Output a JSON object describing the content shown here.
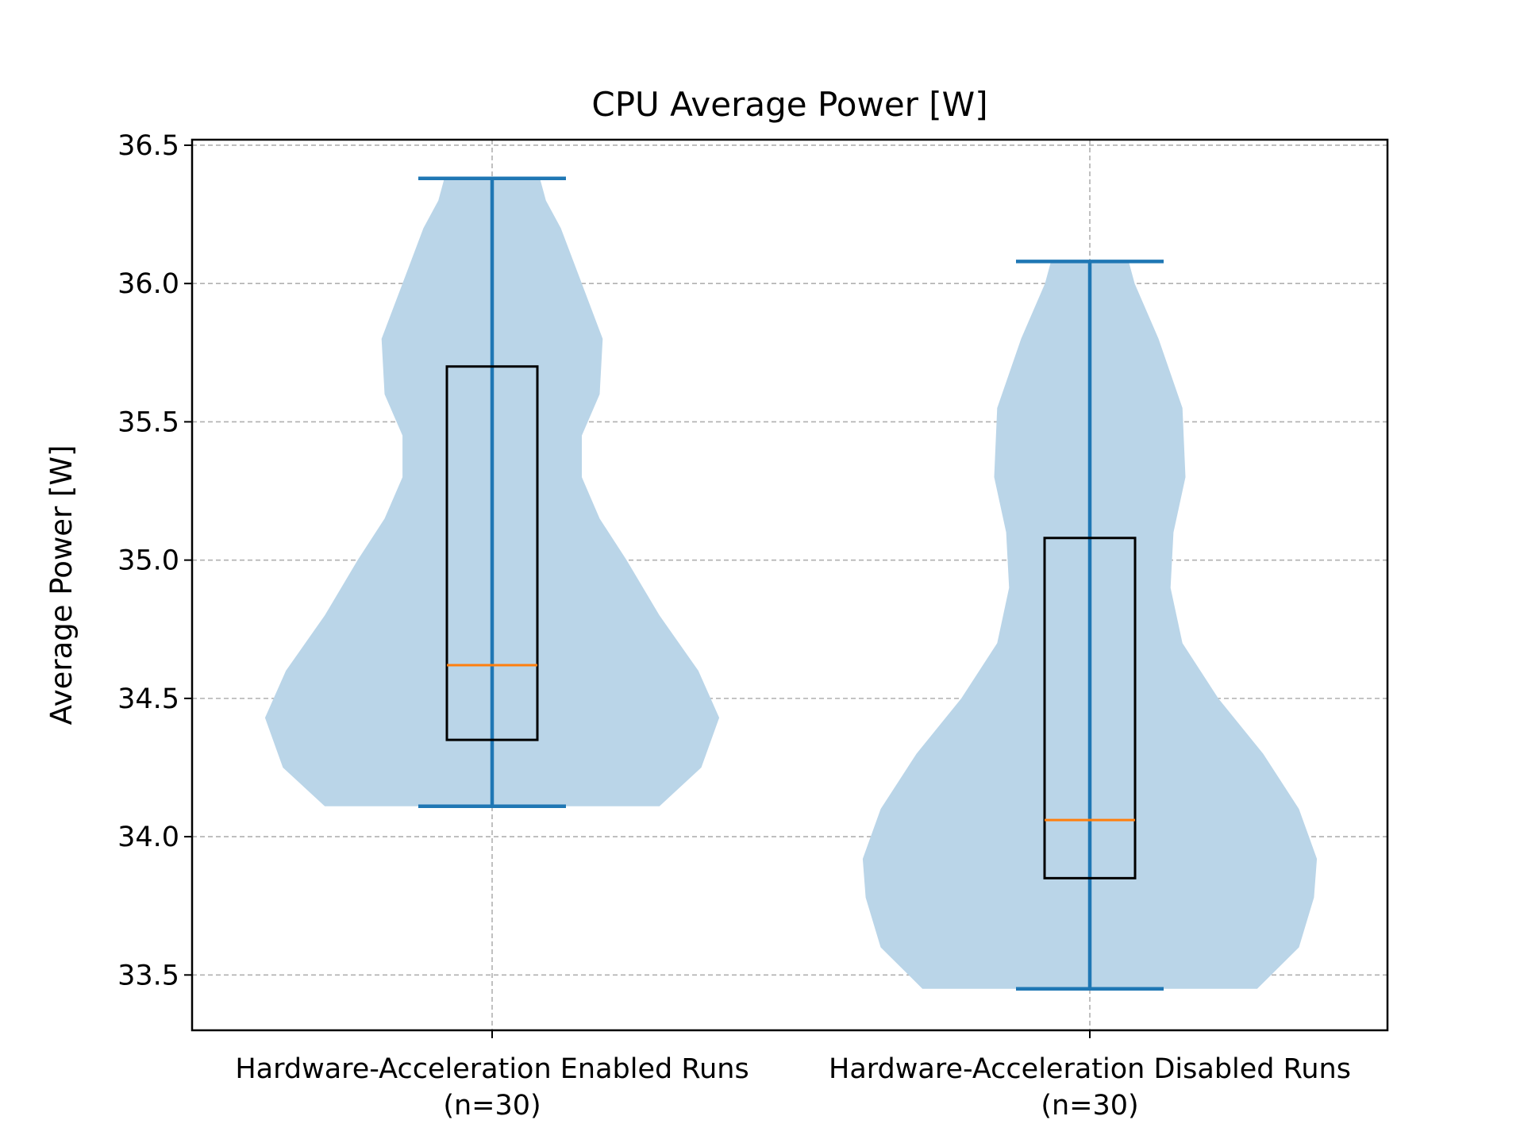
{
  "chart_data": {
    "type": "violin",
    "title": "CPU Average Power [W]",
    "ylabel": "Average Power [W]",
    "xlabel": "",
    "ylim": [
      33.3,
      36.52
    ],
    "yticks": [
      "33.5",
      "34.0",
      "34.5",
      "35.0",
      "35.5",
      "36.0",
      "36.5"
    ],
    "grid": true,
    "categories": [
      "Hardware-Acceleration Enabled Runs\n(n=30)",
      "Hardware-Acceleration Disabled Runs\n(n=30)"
    ],
    "series": [
      {
        "min": 34.11,
        "max": 36.38,
        "q1": 34.35,
        "median": 34.62,
        "q3": 35.7,
        "density": [
          [
            34.11,
            0.56
          ],
          [
            34.25,
            0.7
          ],
          [
            34.43,
            0.76
          ],
          [
            34.6,
            0.69
          ],
          [
            34.8,
            0.56
          ],
          [
            35.0,
            0.45
          ],
          [
            35.15,
            0.36
          ],
          [
            35.3,
            0.3
          ],
          [
            35.45,
            0.3
          ],
          [
            35.6,
            0.36
          ],
          [
            35.8,
            0.37
          ],
          [
            36.0,
            0.3
          ],
          [
            36.2,
            0.23
          ],
          [
            36.3,
            0.18
          ],
          [
            36.38,
            0.16
          ]
        ]
      },
      {
        "min": 33.45,
        "max": 36.08,
        "q1": 33.85,
        "median": 34.06,
        "q3": 35.08,
        "density": [
          [
            33.45,
            0.56
          ],
          [
            33.6,
            0.7
          ],
          [
            33.78,
            0.75
          ],
          [
            33.92,
            0.76
          ],
          [
            34.1,
            0.7
          ],
          [
            34.3,
            0.58
          ],
          [
            34.5,
            0.43
          ],
          [
            34.7,
            0.31
          ],
          [
            34.9,
            0.27
          ],
          [
            35.1,
            0.28
          ],
          [
            35.3,
            0.32
          ],
          [
            35.55,
            0.31
          ],
          [
            35.8,
            0.23
          ],
          [
            36.0,
            0.15
          ],
          [
            36.08,
            0.13
          ]
        ]
      }
    ],
    "colors": {
      "violin_fill": "#bad5e8",
      "extrema": "#1f77b4",
      "median": "#ff7f0e",
      "box": "#000000",
      "grid": "#b0b0b0"
    }
  }
}
